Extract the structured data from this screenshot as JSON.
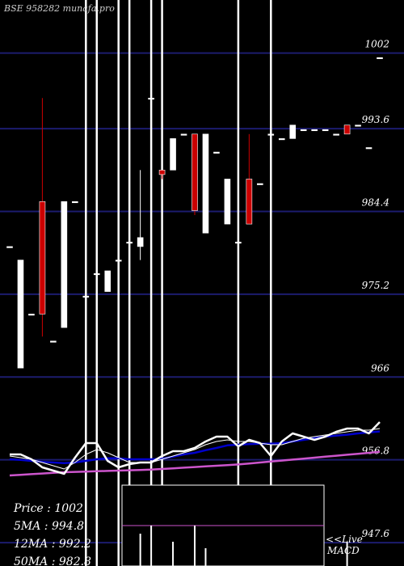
{
  "chart_data": {
    "type": "candlestick",
    "title": "BSE 958282 munafa.pro",
    "ylim": [
      945,
      1007
    ],
    "grid_levels": [
      "1002",
      "993.6",
      "984.4",
      "975.2",
      "966",
      "956.8",
      "947.6"
    ],
    "candles": [
      {
        "o": 980.5,
        "h": 980.5,
        "l": 980.5,
        "c": 980.5,
        "color": "white"
      },
      {
        "o": 967.0,
        "h": 979.0,
        "l": 967.0,
        "c": 979.0,
        "color": "white"
      },
      {
        "o": 973.0,
        "h": 973.0,
        "l": 973.0,
        "c": 973.0,
        "color": "white"
      },
      {
        "o": 985.5,
        "h": 997.0,
        "l": 970.5,
        "c": 973.0,
        "color": "red"
      },
      {
        "o": 970.0,
        "h": 970.0,
        "l": 970.0,
        "c": 970.0,
        "color": "white"
      },
      {
        "o": 971.5,
        "h": 985.5,
        "l": 971.5,
        "c": 985.5,
        "color": "white"
      },
      {
        "o": 985.5,
        "h": 985.5,
        "l": 985.5,
        "c": 985.5,
        "color": "white"
      },
      {
        "o": 975.0,
        "h": 975.0,
        "l": 975.0,
        "c": 975.0,
        "color": "white"
      },
      {
        "o": 977.5,
        "h": 977.5,
        "l": 977.5,
        "c": 977.5,
        "color": "white"
      },
      {
        "o": 975.5,
        "h": 977.8,
        "l": 975.5,
        "c": 977.8,
        "color": "white"
      },
      {
        "o": 979.0,
        "h": 979.0,
        "l": 979.0,
        "c": 979.0,
        "color": "white"
      },
      {
        "o": 981.0,
        "h": 981.0,
        "l": 981.0,
        "c": 981.0,
        "color": "white"
      },
      {
        "o": 980.5,
        "h": 989.0,
        "l": 979.0,
        "c": 981.5,
        "color": "white"
      },
      {
        "o": 997.0,
        "h": 997.0,
        "l": 997.0,
        "c": 997.0,
        "color": "white"
      },
      {
        "o": 989.0,
        "h": 989.0,
        "l": 988.0,
        "c": 988.5,
        "color": "red"
      },
      {
        "o": 989.0,
        "h": 992.5,
        "l": 989.0,
        "c": 992.5,
        "color": "white"
      },
      {
        "o": 993.0,
        "h": 993.0,
        "l": 993.0,
        "c": 993.0,
        "color": "white"
      },
      {
        "o": 993.0,
        "h": 993.0,
        "l": 984.0,
        "c": 984.5,
        "color": "red"
      },
      {
        "o": 982.0,
        "h": 993.0,
        "l": 982.0,
        "c": 993.0,
        "color": "white"
      },
      {
        "o": 991.0,
        "h": 991.0,
        "l": 991.0,
        "c": 991.0,
        "color": "white"
      },
      {
        "o": 983.0,
        "h": 988.0,
        "l": 983.0,
        "c": 988.0,
        "color": "white"
      },
      {
        "o": 981.0,
        "h": 981.0,
        "l": 981.0,
        "c": 981.0,
        "color": "white"
      },
      {
        "o": 988.0,
        "h": 993.0,
        "l": 983.0,
        "c": 983.0,
        "color": "red"
      },
      {
        "o": 987.5,
        "h": 987.5,
        "l": 987.5,
        "c": 987.5,
        "color": "white"
      },
      {
        "o": 993.0,
        "h": 993.0,
        "l": 993.0,
        "c": 993.0,
        "color": "white"
      },
      {
        "o": 992.5,
        "h": 992.5,
        "l": 992.5,
        "c": 992.5,
        "color": "white"
      },
      {
        "o": 992.5,
        "h": 994.0,
        "l": 992.5,
        "c": 994.0,
        "color": "white"
      },
      {
        "o": 993.5,
        "h": 993.5,
        "l": 993.5,
        "c": 993.5,
        "color": "white"
      },
      {
        "o": 993.5,
        "h": 993.5,
        "l": 993.5,
        "c": 993.5,
        "color": "white"
      },
      {
        "o": 993.5,
        "h": 993.5,
        "l": 993.5,
        "c": 993.5,
        "color": "white"
      },
      {
        "o": 993.0,
        "h": 993.0,
        "l": 993.0,
        "c": 993.0,
        "color": "white"
      },
      {
        "o": 994.0,
        "h": 994.0,
        "l": 993.0,
        "c": 993.0,
        "color": "red"
      },
      {
        "o": 994.0,
        "h": 994.0,
        "l": 994.0,
        "c": 994.0,
        "color": "white"
      },
      {
        "o": 991.5,
        "h": 991.5,
        "l": 991.5,
        "c": 991.5,
        "color": "white"
      },
      {
        "o": 1001.5,
        "h": 1001.5,
        "l": 1001.5,
        "c": 1001.5,
        "color": "white"
      }
    ],
    "legend": {
      "price": "Price : 1002",
      "ma5": "5MA : 994.8",
      "ma12": "12MA : 992.2",
      "ma50": "50MA : 982.8"
    },
    "macd_label_1": "<<Live",
    "macd_label_2": "MACD",
    "lower_panel": {
      "ylim": [
        950,
        975
      ],
      "price_line": [
        959.5,
        959.5,
        958.0,
        955.5,
        954.5,
        953.5,
        958.5,
        963.0,
        963.0,
        957.5,
        955.5,
        956.5,
        957.0,
        957.0,
        959.0,
        960.5,
        960.5,
        961.5,
        963.5,
        965.0,
        965.0,
        962.0,
        964.0,
        963.0,
        959.0,
        963.5,
        966.0,
        965.0,
        964.0,
        965.0,
        966.5,
        967.5,
        967.5,
        966.0,
        969.5
      ],
      "ma5": [
        959.0,
        958.5,
        958.0,
        957.0,
        956.0,
        955.0,
        957.0,
        959.5,
        961.0,
        960.0,
        958.5,
        957.0,
        957.0,
        957.0,
        958.0,
        959.0,
        960.0,
        961.0,
        962.5,
        963.5,
        964.0,
        963.5,
        963.5,
        963.0,
        962.5,
        962.5,
        963.5,
        964.5,
        965.0,
        965.5,
        966.0,
        966.5,
        967.0,
        967.0,
        967.5
      ],
      "ma12": [
        958.0,
        957.8,
        957.5,
        957.2,
        957.0,
        956.8,
        957.0,
        957.5,
        958.0,
        958.3,
        958.3,
        958.0,
        958.0,
        958.0,
        958.2,
        958.8,
        959.5,
        960.0,
        960.8,
        961.5,
        962.3,
        962.5,
        962.7,
        962.8,
        962.8,
        963.0,
        963.5,
        964.0,
        964.5,
        965.0,
        965.3,
        965.6,
        966.0,
        966.3,
        966.6
      ],
      "ma50": [
        953.0,
        953.2,
        953.4,
        953.6,
        953.8,
        954.0,
        954.1,
        954.2,
        954.3,
        954.4,
        954.5,
        954.6,
        954.7,
        954.8,
        955.0,
        955.2,
        955.4,
        955.6,
        955.8,
        956.0,
        956.2,
        956.4,
        956.7,
        957.0,
        957.3,
        957.6,
        957.9,
        958.2,
        958.5,
        958.8,
        959.1,
        959.4,
        959.7,
        960.0,
        960.3
      ]
    },
    "colors": {
      "background": "#000000",
      "grid": "#1c1c6e",
      "up": "#ffffff",
      "down": "#cc0000",
      "ma_fast": "#ffffff",
      "ma_mid": "#0000cc",
      "ma_slow": "#cc55cc",
      "title": "#cccccc"
    }
  }
}
